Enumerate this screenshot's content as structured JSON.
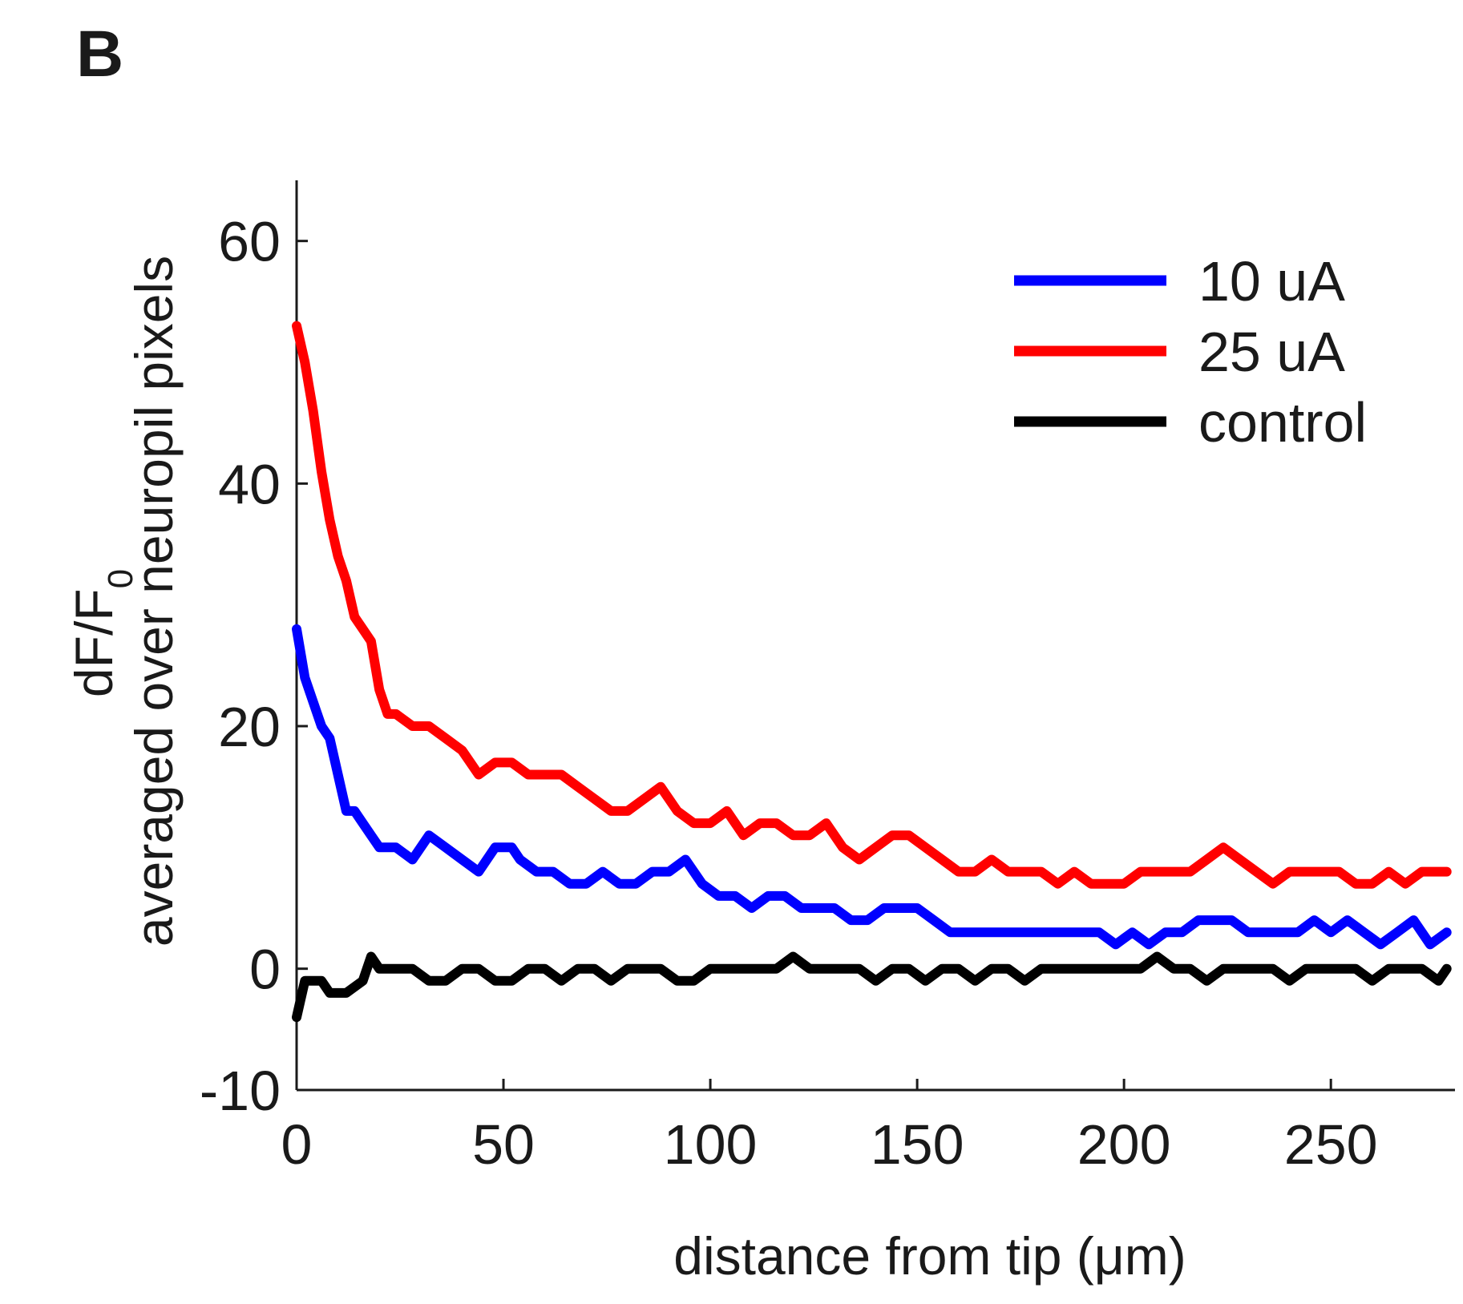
{
  "panel_label": "B",
  "chart_data": {
    "type": "line",
    "xlabel": "distance from tip (μm)",
    "ylabel_line1": "dF/F",
    "ylabel_subscript": "0",
    "ylabel_line2": "averaged over neuropil pixels",
    "xlim": [
      0,
      280
    ],
    "ylim": [
      -10,
      65
    ],
    "xticks": [
      0,
      50,
      100,
      150,
      200,
      250
    ],
    "yticks": [
      -10,
      0,
      20,
      40,
      60
    ],
    "grid": false,
    "legend_position": "top-right",
    "series": [
      {
        "name": "10 uA",
        "color": "#0000ff",
        "x": [
          0,
          2,
          4,
          6,
          8,
          10,
          12,
          14,
          16,
          18,
          20,
          24,
          28,
          32,
          36,
          40,
          44,
          48,
          52,
          54,
          58,
          62,
          66,
          70,
          74,
          78,
          82,
          86,
          90,
          94,
          98,
          102,
          106,
          110,
          114,
          118,
          122,
          126,
          130,
          134,
          138,
          142,
          146,
          150,
          154,
          158,
          162,
          166,
          170,
          174,
          178,
          182,
          186,
          190,
          194,
          198,
          202,
          206,
          210,
          214,
          218,
          222,
          226,
          230,
          234,
          238,
          242,
          246,
          250,
          254,
          258,
          262,
          266,
          270,
          274,
          278
        ],
        "y": [
          28,
          24,
          22,
          20,
          19,
          16,
          13,
          13,
          12,
          11,
          10,
          10,
          9,
          11,
          10,
          9,
          8,
          10,
          10,
          9,
          8,
          8,
          7,
          7,
          8,
          7,
          7,
          8,
          8,
          9,
          7,
          6,
          6,
          5,
          6,
          6,
          5,
          5,
          5,
          4,
          4,
          5,
          5,
          5,
          4,
          3,
          3,
          3,
          3,
          3,
          3,
          3,
          3,
          3,
          3,
          2,
          3,
          2,
          3,
          3,
          4,
          4,
          4,
          3,
          3,
          3,
          3,
          4,
          3,
          4,
          3,
          2,
          3,
          4,
          2,
          3
        ]
      },
      {
        "name": "25 uA",
        "color": "#ff0000",
        "x": [
          0,
          2,
          4,
          6,
          8,
          10,
          12,
          14,
          16,
          18,
          20,
          22,
          24,
          28,
          32,
          36,
          40,
          44,
          48,
          52,
          56,
          60,
          64,
          68,
          72,
          76,
          80,
          84,
          88,
          92,
          96,
          100,
          104,
          108,
          112,
          116,
          120,
          124,
          128,
          132,
          136,
          140,
          144,
          148,
          152,
          156,
          160,
          164,
          168,
          172,
          176,
          180,
          184,
          188,
          192,
          196,
          200,
          204,
          208,
          212,
          216,
          220,
          224,
          228,
          232,
          236,
          240,
          244,
          248,
          252,
          256,
          260,
          264,
          268,
          272,
          276,
          278
        ],
        "y": [
          53,
          50,
          46,
          41,
          37,
          34,
          32,
          29,
          28,
          27,
          23,
          21,
          21,
          20,
          20,
          19,
          18,
          16,
          17,
          17,
          16,
          16,
          16,
          15,
          14,
          13,
          13,
          14,
          15,
          13,
          12,
          12,
          13,
          11,
          12,
          12,
          11,
          11,
          12,
          10,
          9,
          10,
          11,
          11,
          10,
          9,
          8,
          8,
          9,
          8,
          8,
          8,
          7,
          8,
          7,
          7,
          7,
          8,
          8,
          8,
          8,
          9,
          10,
          9,
          8,
          7,
          8,
          8,
          8,
          8,
          7,
          7,
          8,
          7,
          8,
          8,
          8
        ]
      },
      {
        "name": "control",
        "color": "#000000",
        "x": [
          0,
          2,
          4,
          6,
          8,
          12,
          16,
          18,
          20,
          24,
          28,
          32,
          36,
          40,
          44,
          48,
          52,
          56,
          60,
          64,
          68,
          72,
          76,
          80,
          84,
          88,
          92,
          96,
          100,
          104,
          108,
          112,
          116,
          120,
          124,
          128,
          132,
          136,
          140,
          144,
          148,
          152,
          156,
          160,
          164,
          168,
          172,
          176,
          180,
          184,
          188,
          192,
          196,
          200,
          204,
          208,
          212,
          216,
          220,
          224,
          228,
          232,
          236,
          240,
          244,
          248,
          252,
          256,
          260,
          264,
          268,
          272,
          276,
          278
        ],
        "y": [
          -4,
          -1,
          -1,
          -1,
          -2,
          -2,
          -1,
          1,
          0,
          0,
          0,
          -1,
          -1,
          0,
          0,
          -1,
          -1,
          0,
          0,
          -1,
          0,
          0,
          -1,
          0,
          0,
          0,
          -1,
          -1,
          0,
          0,
          0,
          0,
          0,
          1,
          0,
          0,
          0,
          0,
          -1,
          0,
          0,
          -1,
          0,
          0,
          -1,
          0,
          0,
          -1,
          0,
          0,
          0,
          0,
          0,
          0,
          0,
          1,
          0,
          0,
          -1,
          0,
          0,
          0,
          0,
          -1,
          0,
          0,
          0,
          0,
          -1,
          0,
          0,
          0,
          -1,
          0
        ]
      }
    ]
  }
}
